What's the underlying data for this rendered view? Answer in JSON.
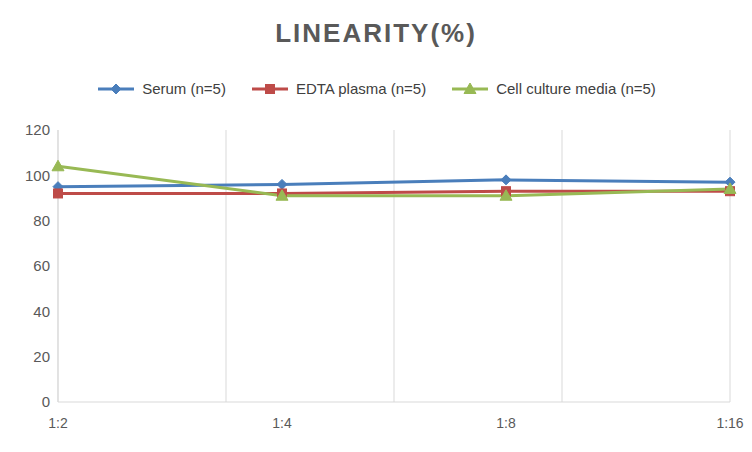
{
  "chart_data": {
    "type": "line",
    "title": "LINEARITY(%)",
    "categories": [
      "1:2",
      "1:4",
      "1:8",
      "1:16"
    ],
    "series": [
      {
        "name": "Serum (n=5)",
        "color": "#4a7ebb",
        "marker": "diamond",
        "values": [
          95,
          96,
          98,
          97
        ]
      },
      {
        "name": "EDTA plasma (n=5)",
        "color": "#be4b48",
        "marker": "square",
        "values": [
          92,
          92,
          93,
          93
        ]
      },
      {
        "name": "Cell culture media (n=5)",
        "color": "#98b954",
        "marker": "triangle",
        "values": [
          104,
          91,
          91,
          94
        ]
      }
    ],
    "ylim": [
      0,
      120
    ],
    "yticks": [
      0,
      20,
      40,
      60,
      80,
      100,
      120
    ],
    "grid": true,
    "legend": "top"
  }
}
